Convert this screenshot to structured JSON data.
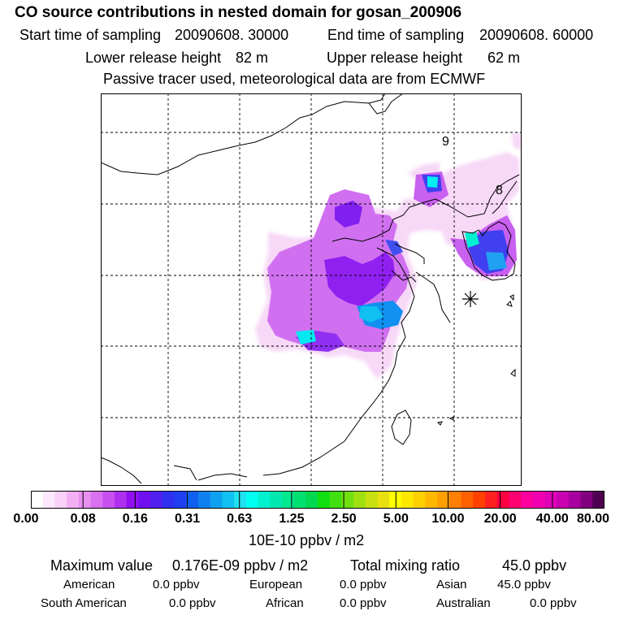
{
  "header": {
    "title": "CO  source contributions in nested domain for gosan_200906",
    "start_label": "Start time of sampling",
    "start_value": "20090608. 30000",
    "end_label": "End time of sampling",
    "end_value": "20090608. 60000",
    "lower_label": "Lower release height",
    "lower_value": "82 m",
    "upper_label": "Upper release height",
    "upper_value": "62 m",
    "note": "Passive tracer used, meteorological data are from ECMWF"
  },
  "map": {
    "day_labels": [
      "9",
      "8"
    ],
    "receptor_marker": "asterisk-station-icon"
  },
  "colorbar": {
    "tick_labels": [
      "0.00",
      "0.08",
      "0.16",
      "0.31",
      "0.63",
      "1.25",
      "2.50",
      "5.00",
      "10.00",
      "20.00",
      "40.00",
      "80.00"
    ],
    "colors": [
      "#ffffff",
      "#fde8fd",
      "#f8d0f8",
      "#f2b0f2",
      "#e890f0",
      "#d870f0",
      "#c850f0",
      "#b030f0",
      "#9010f0",
      "#7010f0",
      "#5020f0",
      "#3030f0",
      "#2040f0",
      "#1060f0",
      "#1080f0",
      "#10a0f0",
      "#10c0f0",
      "#20e0f0",
      "#00fff0",
      "#00f0d0",
      "#00e8b0",
      "#00e890",
      "#00e070",
      "#00d850",
      "#10e010",
      "#40e010",
      "#70e010",
      "#a0e010",
      "#c8e010",
      "#e8e010",
      "#ffff00",
      "#ffe800",
      "#ffd000",
      "#ffb800",
      "#ffa000",
      "#ff8000",
      "#ff6000",
      "#ff4000",
      "#ff2020",
      "#ff0040",
      "#ff0070",
      "#ff00a0",
      "#f000b0",
      "#e000b8",
      "#c800b0",
      "#a800a0",
      "#800080",
      "#500050"
    ],
    "unit": "10E-10 ppbv / m2"
  },
  "footer": {
    "max_label": "Maximum value",
    "max_value": "0.176E-09 ppbv / m2",
    "total_label": "Total mixing ratio",
    "total_value": "45.0 ppbv",
    "regions": [
      {
        "name": "American",
        "value": "0.0 ppbv"
      },
      {
        "name": "European",
        "value": "0.0 ppbv"
      },
      {
        "name": "Asian",
        "value": "45.0 ppbv"
      },
      {
        "name": "South American",
        "value": "0.0 ppbv"
      },
      {
        "name": "African",
        "value": "0.0 ppbv"
      },
      {
        "name": "Australian",
        "value": "0.0 ppbv"
      }
    ]
  }
}
